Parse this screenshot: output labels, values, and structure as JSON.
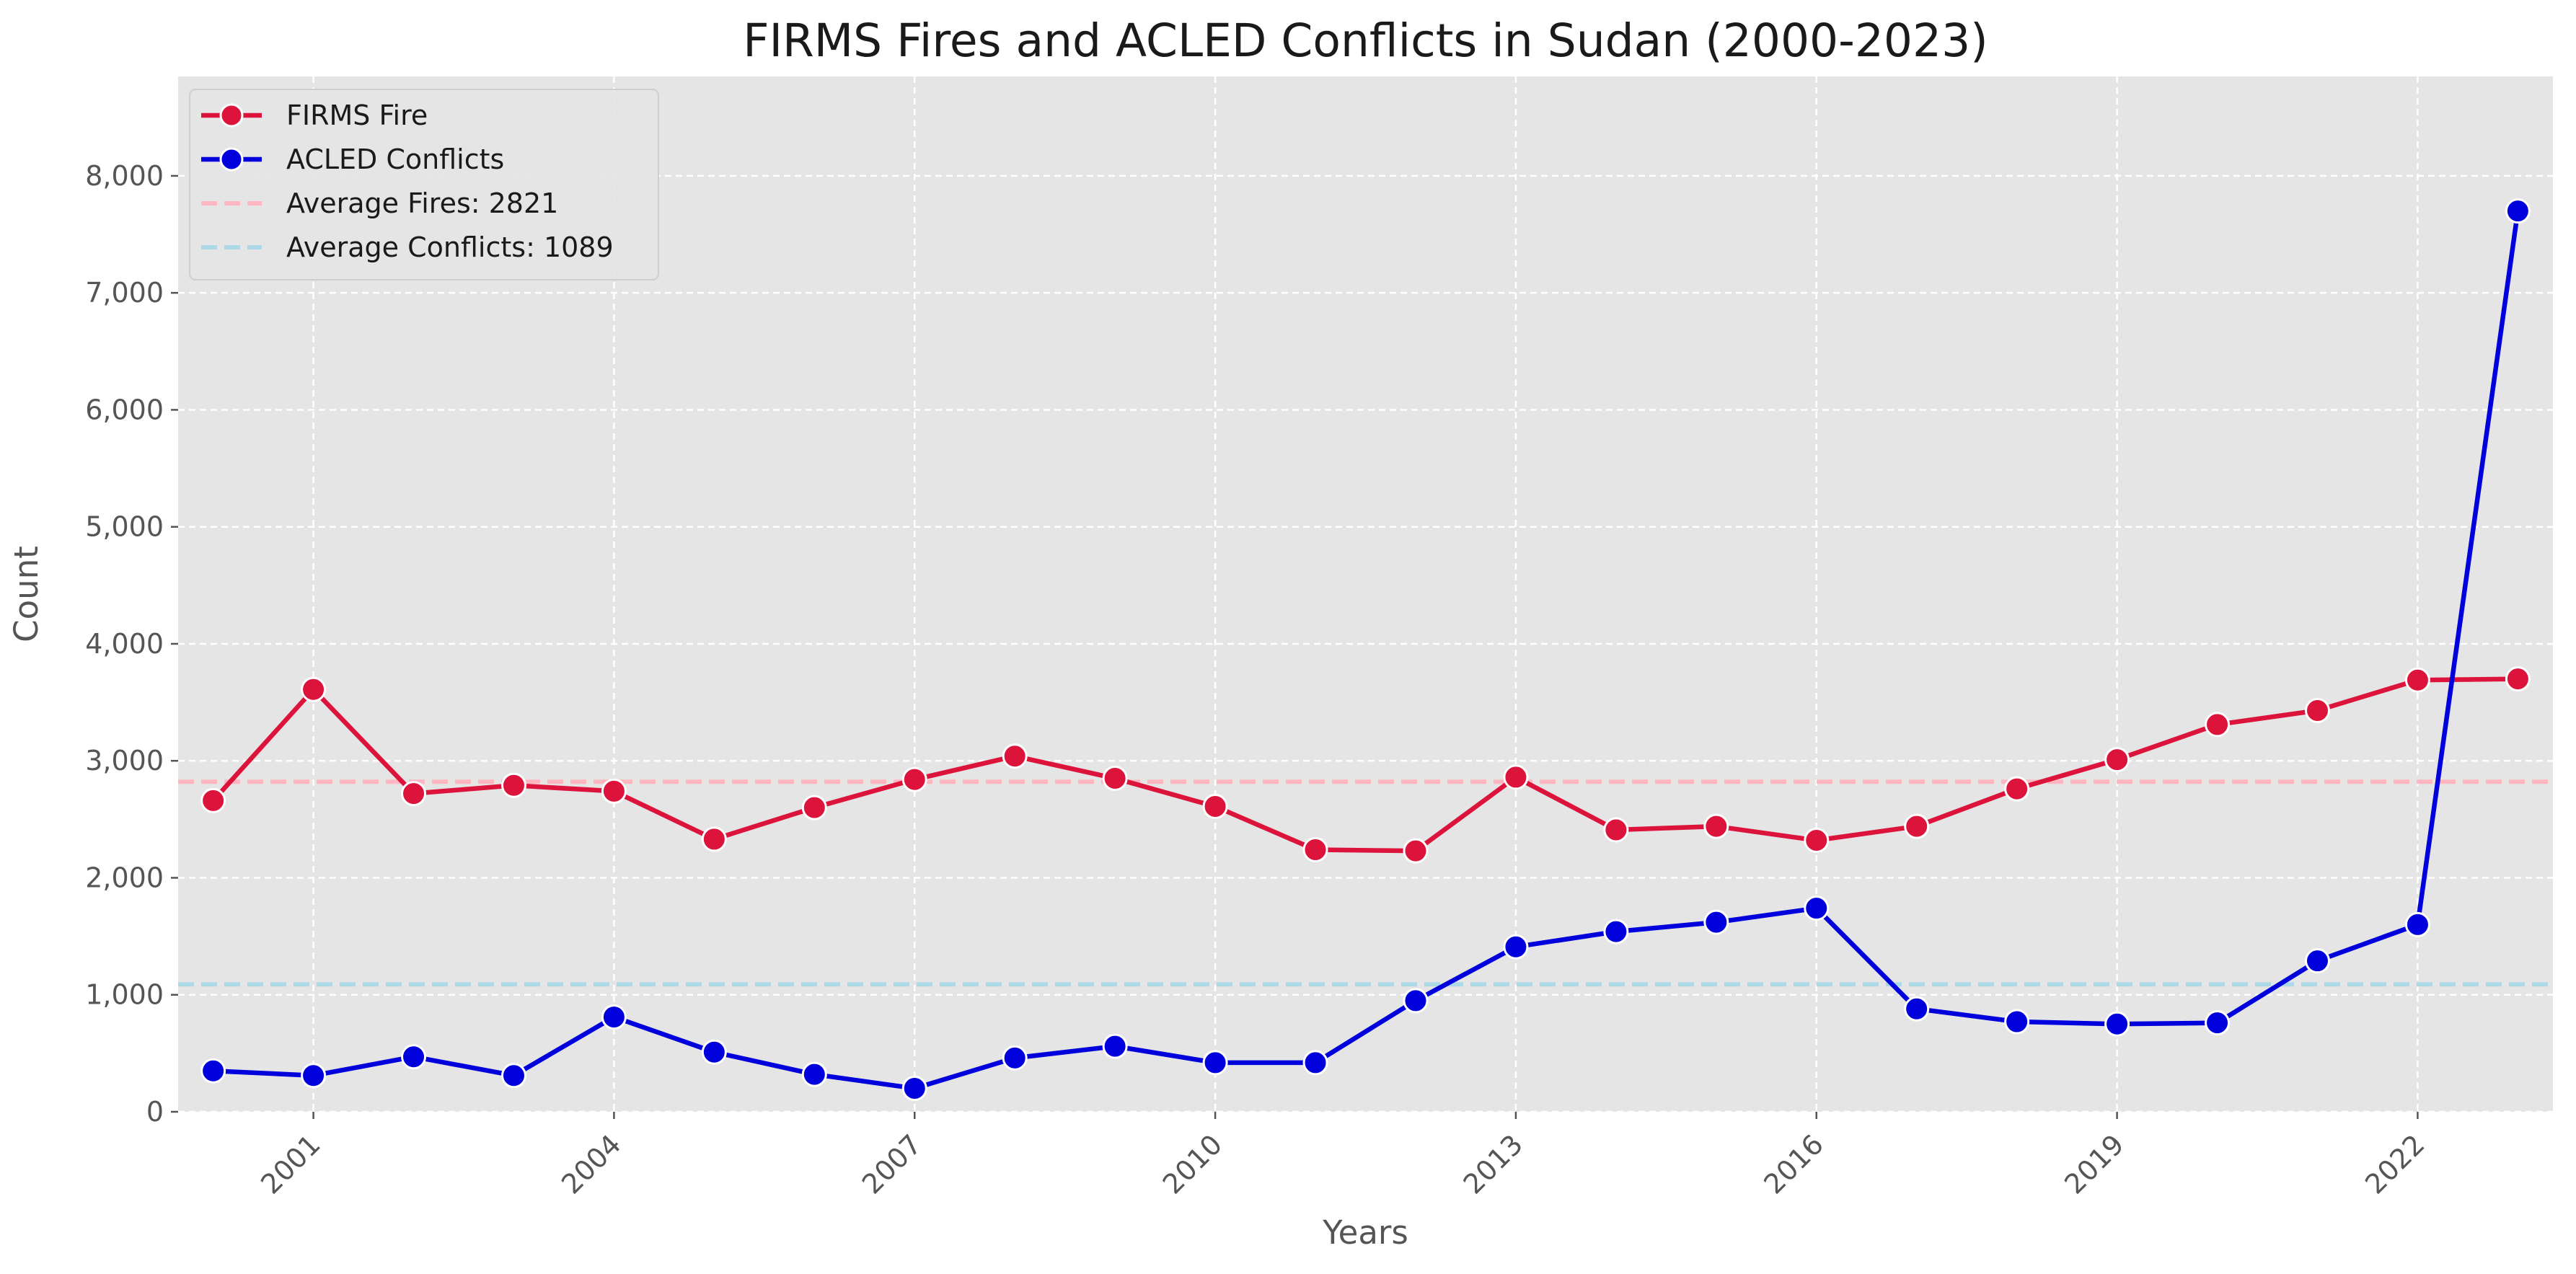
{
  "chart_data": {
    "type": "line",
    "title": "FIRMS Fires and ACLED Conflicts in Sudan (2000-2023)",
    "xlabel": "Years",
    "ylabel": "Count",
    "x": [
      2000,
      2001,
      2002,
      2003,
      2004,
      2005,
      2006,
      2007,
      2008,
      2009,
      2010,
      2011,
      2012,
      2013,
      2014,
      2015,
      2016,
      2017,
      2018,
      2019,
      2020,
      2021,
      2022,
      2023
    ],
    "xlim": [
      1999.65,
      2023.35
    ],
    "ylim": [
      0,
      8850
    ],
    "x_ticks": [
      2001,
      2004,
      2007,
      2010,
      2013,
      2016,
      2019,
      2022
    ],
    "x_tick_labels": [
      "2001",
      "2004",
      "2007",
      "2010",
      "2013",
      "2016",
      "2019",
      "2022"
    ],
    "y_ticks": [
      0,
      1000,
      2000,
      3000,
      4000,
      5000,
      6000,
      7000,
      8000
    ],
    "y_tick_labels": [
      "0",
      "1,000",
      "2,000",
      "3,000",
      "4,000",
      "5,000",
      "6,000",
      "7,000",
      "8,000"
    ],
    "grid": true,
    "legend_position": "top-left",
    "background_color": "#e5e5e5",
    "series": [
      {
        "name": "FIRMS Fire",
        "color": "#dc143c",
        "values": [
          2660,
          3610,
          2720,
          2790,
          2740,
          2330,
          2600,
          2840,
          3040,
          2850,
          2610,
          2240,
          2230,
          2860,
          2410,
          2440,
          2320,
          2440,
          2760,
          3010,
          3310,
          3430,
          3690,
          3700
        ]
      },
      {
        "name": "ACLED Conflicts",
        "color": "#0000dd",
        "values": [
          350,
          310,
          470,
          310,
          810,
          510,
          320,
          200,
          460,
          560,
          420,
          420,
          950,
          1410,
          1540,
          1620,
          1740,
          880,
          770,
          750,
          760,
          1290,
          1600,
          7700
        ]
      }
    ],
    "reference_lines": [
      {
        "label": "Average Fires: 2821",
        "value": 2821,
        "color": "#ffb6c1"
      },
      {
        "label": "Average Conflicts: 1089",
        "value": 1089,
        "color": "#add8e6"
      }
    ]
  }
}
